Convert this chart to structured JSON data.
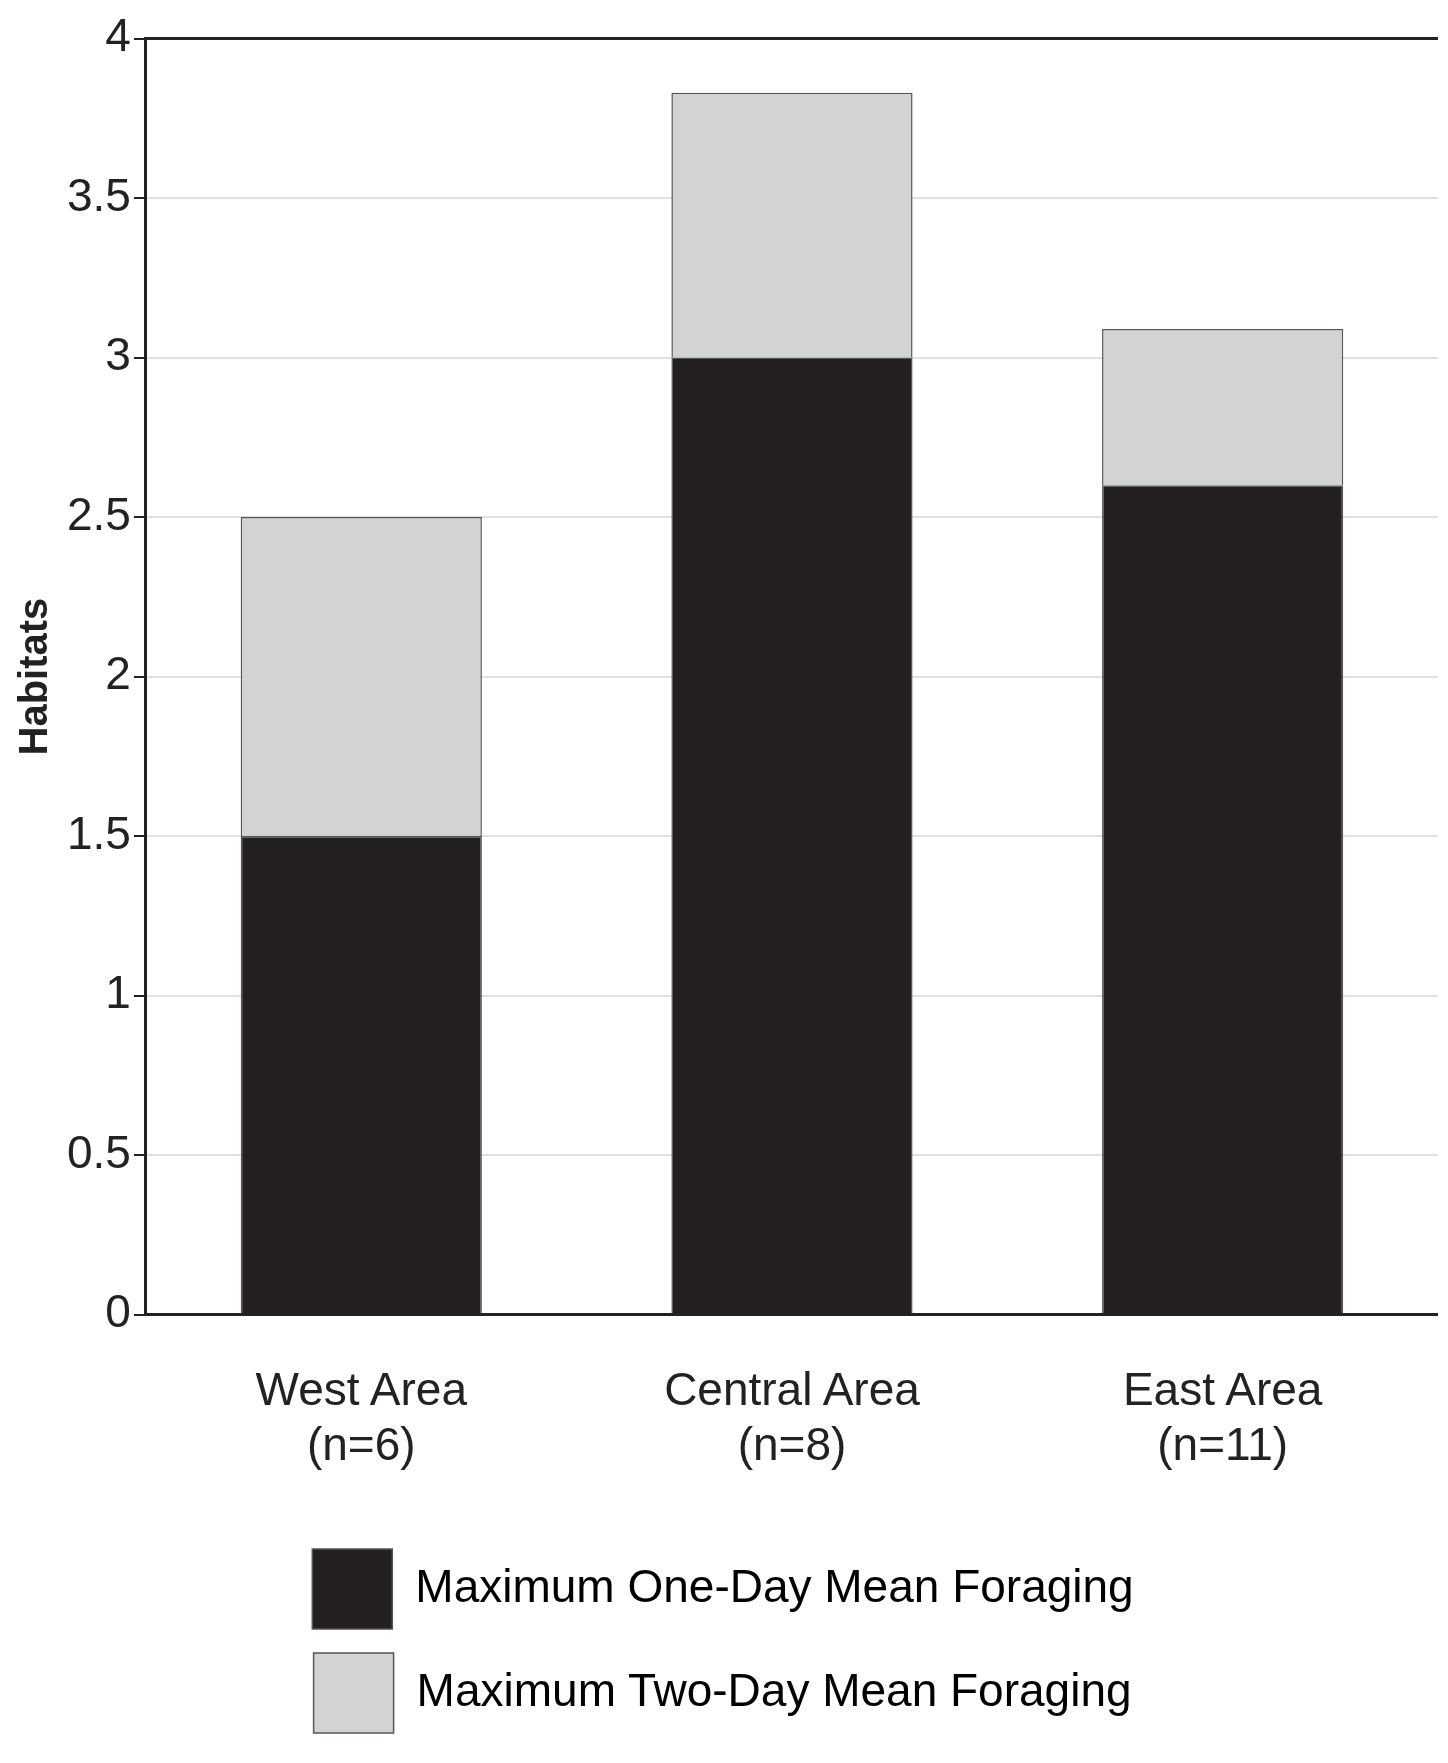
{
  "chart_data": {
    "type": "bar",
    "ylabel": "Habitats",
    "categories": [
      "West Area\n(n=6)",
      "Central Area\n(n=8)",
      "East Area\n(n=11)"
    ],
    "stacked": true,
    "series": [
      {
        "name": "Maximum One-Day Mean Foraging",
        "color": "#231f20",
        "values": [
          1.5,
          3.0,
          2.6
        ]
      },
      {
        "name": "Maximum Two-Day Mean Foraging",
        "color": "#d1d3d4",
        "values": [
          1.0,
          0.83,
          0.49
        ]
      }
    ],
    "ylim": [
      0,
      4
    ],
    "yticks": [
      0,
      0.5,
      1,
      1.5,
      2,
      2.5,
      3,
      3.5,
      4
    ],
    "grid": "y",
    "legend": "bottom"
  }
}
